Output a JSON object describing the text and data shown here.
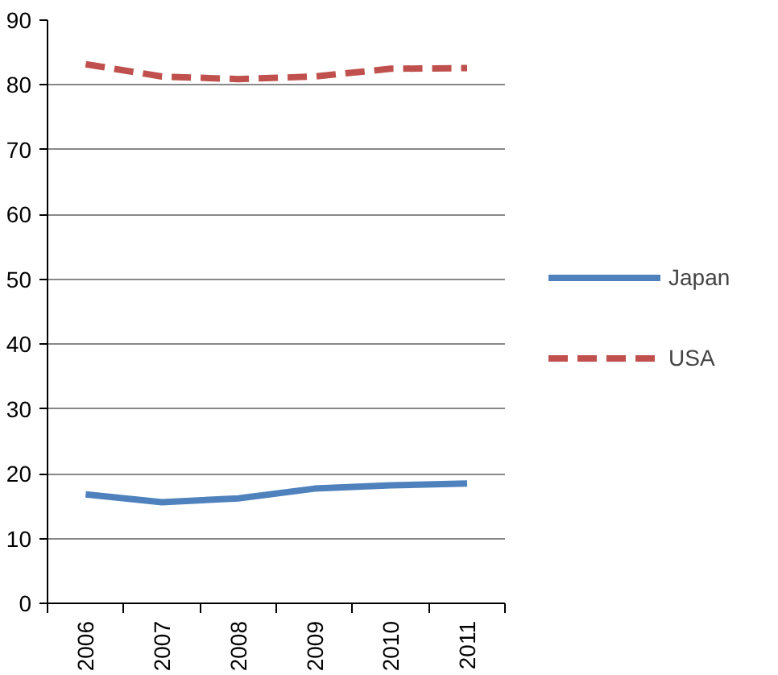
{
  "chart_data": {
    "type": "line",
    "categories": [
      "2006",
      "2007",
      "2008",
      "2009",
      "2010",
      "2011"
    ],
    "series": [
      {
        "name": "Japan",
        "color": "#4f81bd",
        "values": [
          16.8,
          15.6,
          16.2,
          17.7,
          18.2,
          18.5
        ],
        "line_style": "solid"
      },
      {
        "name": "USA",
        "color": "#c0504d",
        "values": [
          83.2,
          81.3,
          80.9,
          81.3,
          82.5,
          82.6
        ],
        "line_style": "dashed"
      }
    ],
    "ylim": [
      0,
      90
    ],
    "yticks": [
      0,
      10,
      20,
      30,
      40,
      50,
      60,
      70,
      80,
      90
    ],
    "grid": "y",
    "legend": "right",
    "marker": "none"
  }
}
